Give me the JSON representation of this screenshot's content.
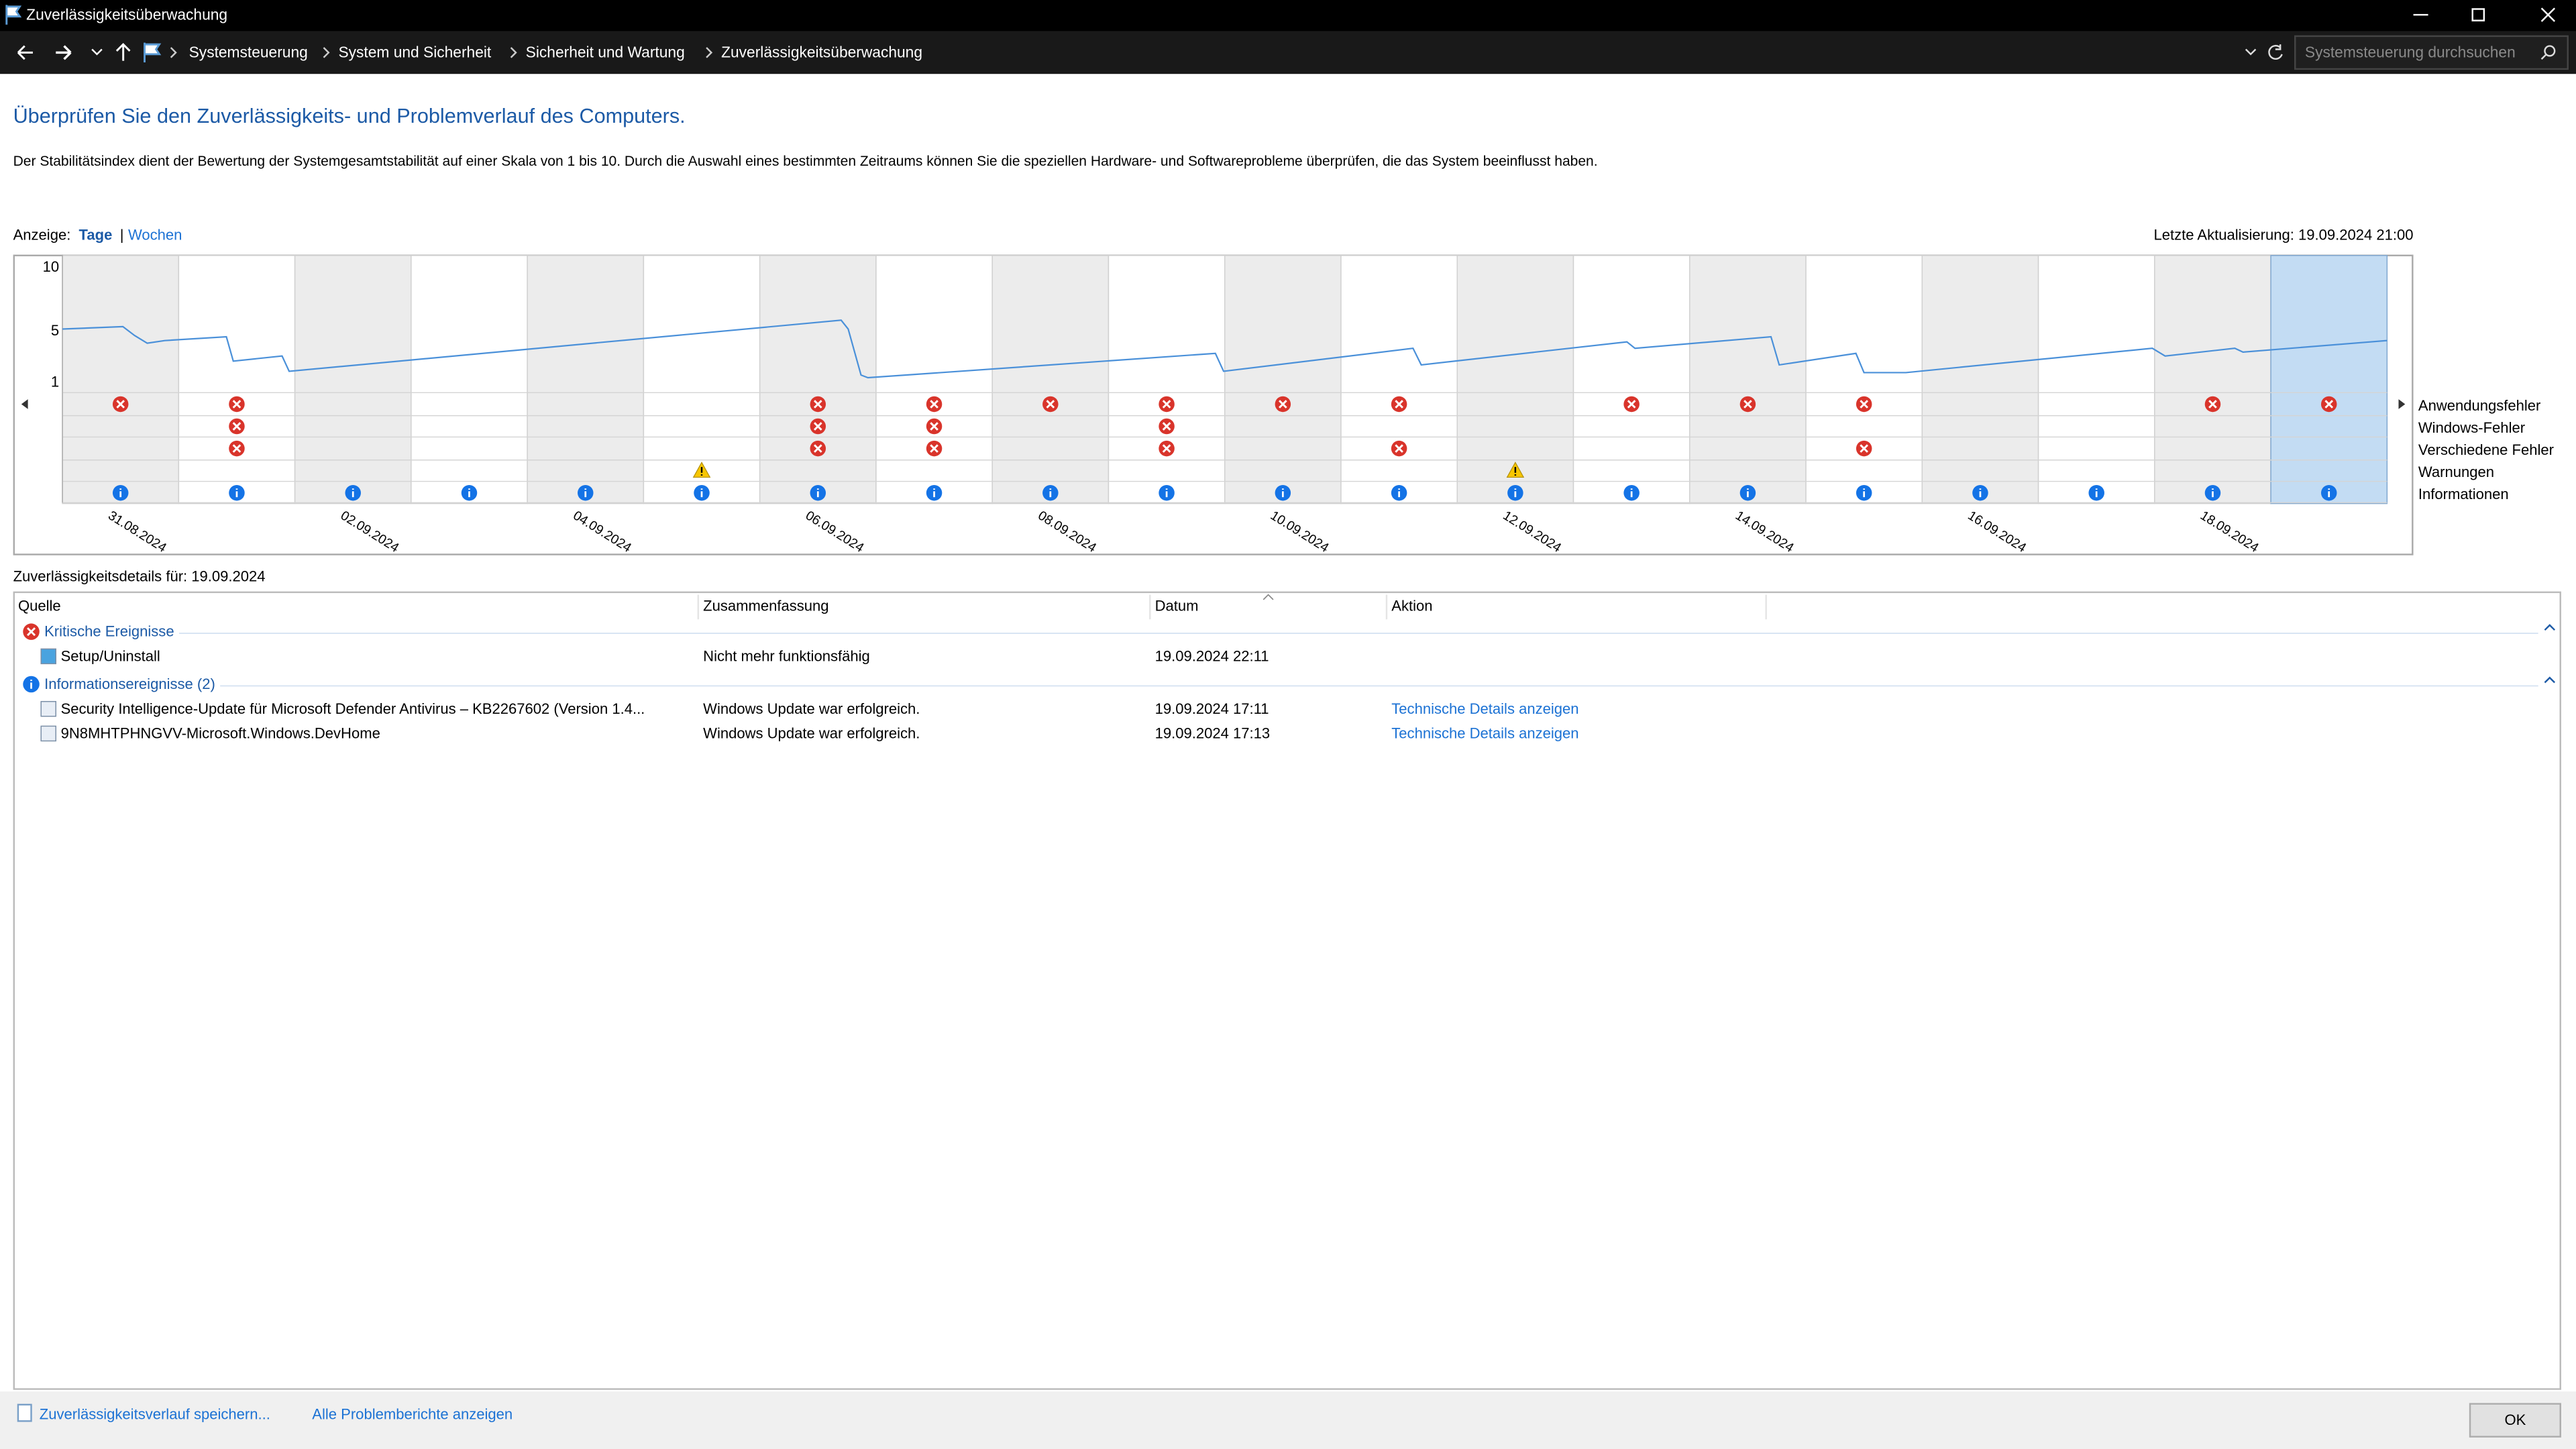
{
  "window": {
    "title": "Zuverlässigkeitsüberwachung"
  },
  "address": {
    "breadcrumb": [
      "Systemsteuerung",
      "System und Sicherheit",
      "Sicherheit und Wartung",
      "Zuverlässigkeitsüberwachung"
    ],
    "search_placeholder": "Systemsteuerung durchsuchen"
  },
  "header": {
    "title": "Überprüfen Sie den Zuverlässigkeits- und Problemverlauf des Computers.",
    "description": "Der Stabilitätsindex dient der Bewertung der Systemgesamtstabilität auf einer Skala von 1 bis 10. Durch die Auswahl eines bestimmten Zeitraums können Sie die speziellen Hardware- und Softwareprobleme überprüfen, die das System beeinflusst haben."
  },
  "view": {
    "label": "Anzeige:",
    "options": [
      "Tage",
      "Wochen"
    ],
    "separator": "|",
    "last_update": "Letzte Aktualisierung: 19.09.2024 21:00"
  },
  "chart_data": {
    "type": "reliability",
    "x": [
      "31.08.2024",
      null,
      "02.09.2024",
      null,
      "04.09.2024",
      null,
      "06.09.2024",
      null,
      "08.09.2024",
      null,
      "10.09.2024",
      null,
      "12.09.2024",
      null,
      "14.09.2024",
      null,
      "16.09.2024",
      null,
      "18.09.2024",
      null
    ],
    "ylim": [
      1,
      10
    ],
    "yticks": [
      10,
      5,
      1
    ],
    "selected": 19,
    "stability_index": {
      "color": "#4a90d9",
      "x": [
        0,
        0.52,
        0.62,
        0.73,
        0.88,
        1.41,
        1.47,
        1.89,
        1.95,
        6.7,
        6.76,
        6.87,
        6.93,
        9.92,
        9.99,
        11.62,
        11.69,
        13.46,
        13.53,
        14.7,
        14.77,
        15.43,
        15.5,
        15.86,
        17.98,
        18.09,
        18.69,
        18.76,
        20
      ],
      "values": [
        5.2,
        5.4,
        4.7,
        4.1,
        4.3,
        4.6,
        2.7,
        3.1,
        1.9,
        5.9,
        5.2,
        1.6,
        1.4,
        3.3,
        1.9,
        3.7,
        2.4,
        4.2,
        3.7,
        4.6,
        2.4,
        3.3,
        1.8,
        1.8,
        3.7,
        3.1,
        3.7,
        3.4,
        4.3
      ]
    },
    "rows": [
      {
        "name": "Anwendungsfehler",
        "kind": "error",
        "values": [
          1,
          1,
          0,
          0,
          0,
          0,
          1,
          1,
          1,
          1,
          1,
          1,
          0,
          1,
          1,
          1,
          0,
          0,
          1,
          1
        ]
      },
      {
        "name": "Windows-Fehler",
        "kind": "error",
        "values": [
          0,
          1,
          0,
          0,
          0,
          0,
          1,
          1,
          0,
          1,
          0,
          0,
          0,
          0,
          0,
          0,
          0,
          0,
          0,
          0
        ]
      },
      {
        "name": "Verschiedene Fehler",
        "kind": "error",
        "values": [
          0,
          1,
          0,
          0,
          0,
          0,
          1,
          1,
          0,
          1,
          0,
          1,
          0,
          0,
          0,
          1,
          0,
          0,
          0,
          0
        ]
      },
      {
        "name": "Warnungen",
        "kind": "warning",
        "values": [
          0,
          0,
          0,
          0,
          0,
          1,
          0,
          0,
          0,
          0,
          0,
          0,
          1,
          0,
          0,
          0,
          0,
          0,
          0,
          0
        ]
      },
      {
        "name": "Informationen",
        "kind": "info",
        "values": [
          1,
          1,
          1,
          1,
          1,
          1,
          1,
          1,
          1,
          1,
          1,
          1,
          1,
          1,
          1,
          1,
          1,
          1,
          1,
          1
        ]
      }
    ]
  },
  "details": {
    "title": "Zuverlässigkeitsdetails für: 19.09.2024",
    "columns": [
      "Quelle",
      "Zusammenfassung",
      "Datum",
      "Aktion"
    ],
    "groups": [
      {
        "name": "Kritische Ereignisse",
        "kind": "error",
        "rows": [
          {
            "source": "Setup/Uninstall",
            "summary": "Nicht mehr funktionsfähig",
            "date": "19.09.2024 22:11"
          }
        ]
      },
      {
        "name": "Informationsereignisse (2)",
        "kind": "info",
        "rows": [
          {
            "source": "Security Intelligence-Update für Microsoft Defender Antivirus – KB2267602 (Version 1.4...",
            "summary": "Windows Update war erfolgreich.",
            "date": "19.09.2024 17:11",
            "action": "Technische Details anzeigen"
          },
          {
            "source": "9N8MHTPHNGVV-Microsoft.Windows.DevHome",
            "summary": "Windows Update war erfolgreich.",
            "date": "19.09.2024 17:13",
            "action": "Technische Details anzeigen"
          }
        ]
      }
    ]
  },
  "footer": {
    "links": [
      "Zuverlässigkeitsverlauf speichern...",
      "Alle Problemberichte anzeigen"
    ],
    "ok": "OK"
  }
}
